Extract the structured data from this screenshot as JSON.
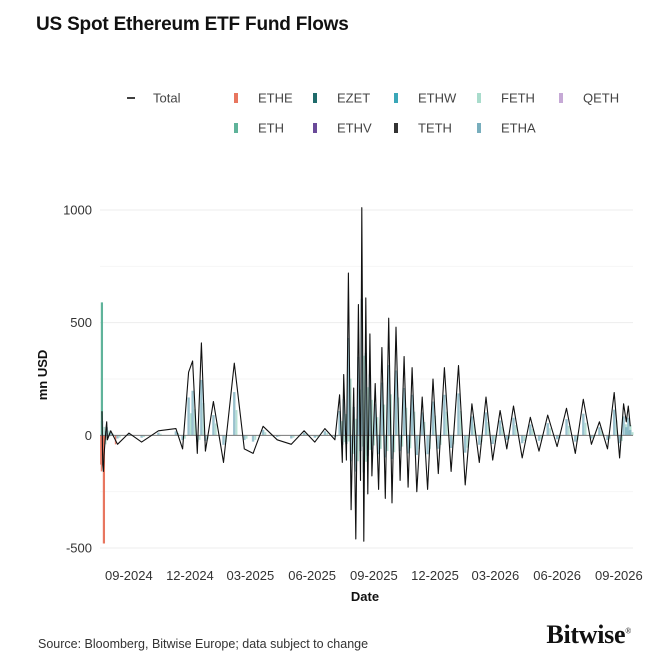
{
  "title": "US Spot Ethereum ETF Fund Flows",
  "footer": {
    "source": "Source: Bloomberg, Bitwise Europe; data subject to change",
    "brand": "Bitwise",
    "brand_mark": "®"
  },
  "chart_data": {
    "type": "bar",
    "xlabel": "Date",
    "ylabel": "mn USD",
    "ylim": [
      -500,
      1000
    ],
    "yticks": [
      -500,
      0,
      500,
      1000
    ],
    "xticks": [
      "09-2024",
      "12-2024",
      "03-2025",
      "06-2025",
      "09-2025",
      "12-2025",
      "03-2026",
      "06-2026",
      "09-2026"
    ],
    "grid": true,
    "legend_position": "top",
    "legend": [
      {
        "name": "Total",
        "color": "#111111",
        "kind": "line"
      },
      {
        "name": "ETHE",
        "color": "#e8765f",
        "kind": "bar"
      },
      {
        "name": "EZET",
        "color": "#1f6b6b",
        "kind": "bar"
      },
      {
        "name": "ETHW",
        "color": "#3aa7b8",
        "kind": "bar"
      },
      {
        "name": "FETH",
        "color": "#a9dccc",
        "kind": "bar"
      },
      {
        "name": "QETH",
        "color": "#c6a9d6",
        "kind": "bar"
      },
      {
        "name": "ETH",
        "color": "#5fb39a",
        "kind": "bar"
      },
      {
        "name": "ETHV",
        "color": "#6a4a99",
        "kind": "bar"
      },
      {
        "name": "TETH",
        "color": "#333333",
        "kind": "bar"
      },
      {
        "name": "ETHA",
        "color": "#78aebd",
        "kind": "bar"
      }
    ],
    "series": [
      {
        "name": "Total",
        "x": [
          "2024-07-23",
          "2024-07-24",
          "2024-07-25",
          "2024-07-26",
          "2024-07-29",
          "2024-07-30",
          "2024-07-31",
          "2024-08-05",
          "2024-08-15",
          "2024-09-01",
          "2024-09-20",
          "2024-10-15",
          "2024-11-10",
          "2024-11-20",
          "2024-11-29",
          "2024-12-05",
          "2024-12-12",
          "2024-12-18",
          "2024-12-24",
          "2025-01-05",
          "2025-01-20",
          "2025-02-05",
          "2025-02-20",
          "2025-03-05",
          "2025-03-20",
          "2025-04-10",
          "2025-05-01",
          "2025-05-20",
          "2025-06-05",
          "2025-06-20",
          "2025-07-05",
          "2025-07-12",
          "2025-07-16",
          "2025-07-18",
          "2025-07-22",
          "2025-07-25",
          "2025-07-29",
          "2025-08-02",
          "2025-08-05",
          "2025-08-09",
          "2025-08-12",
          "2025-08-14",
          "2025-08-17",
          "2025-08-20",
          "2025-08-23",
          "2025-08-26",
          "2025-08-29",
          "2025-09-03",
          "2025-09-08",
          "2025-09-13",
          "2025-09-18",
          "2025-09-23",
          "2025-09-28",
          "2025-10-04",
          "2025-10-10",
          "2025-10-16",
          "2025-10-22",
          "2025-10-28",
          "2025-11-04",
          "2025-11-12",
          "2025-11-20",
          "2025-11-28",
          "2025-12-06",
          "2025-12-15",
          "2025-12-25",
          "2026-01-05",
          "2026-01-15",
          "2026-01-25",
          "2026-02-05",
          "2026-02-15",
          "2026-02-25",
          "2026-03-08",
          "2026-03-18",
          "2026-03-28",
          "2026-04-10",
          "2026-04-22",
          "2026-05-05",
          "2026-05-18",
          "2026-06-01",
          "2026-06-15",
          "2026-06-28",
          "2026-07-10",
          "2026-07-22",
          "2026-08-03",
          "2026-08-15",
          "2026-08-25",
          "2026-09-02",
          "2026-09-08",
          "2026-09-12",
          "2026-09-15",
          "2026-09-18"
        ],
        "values": [
          107,
          -130,
          -160,
          -90,
          30,
          60,
          -20,
          20,
          -40,
          10,
          -30,
          20,
          30,
          -60,
          280,
          330,
          -80,
          410,
          -70,
          150,
          -120,
          320,
          -60,
          -80,
          40,
          -20,
          -40,
          20,
          -30,
          30,
          -20,
          180,
          -120,
          270,
          -110,
          720,
          -330,
          210,
          -460,
          580,
          -200,
          1010,
          -470,
          610,
          -260,
          450,
          -180,
          230,
          -240,
          390,
          -280,
          520,
          -300,
          480,
          -200,
          350,
          -230,
          300,
          -250,
          170,
          -240,
          250,
          -170,
          300,
          -160,
          310,
          -220,
          140,
          -120,
          170,
          -110,
          110,
          -60,
          130,
          -100,
          80,
          -70,
          90,
          -50,
          120,
          -80,
          160,
          -40,
          60,
          -60,
          190,
          -100,
          140,
          60,
          130,
          40
        ]
      }
    ]
  }
}
